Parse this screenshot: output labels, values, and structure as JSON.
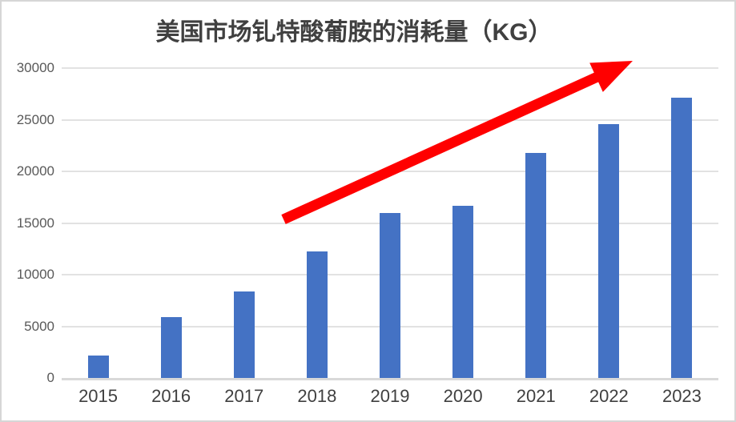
{
  "frame": {
    "background": "#ffffff",
    "border_color": "#d6d6d6"
  },
  "chart_data": {
    "type": "bar",
    "title": "美国市场钆特酸葡胺的消耗量（KG）",
    "categories": [
      "2015",
      "2016",
      "2017",
      "2018",
      "2019",
      "2020",
      "2021",
      "2022",
      "2023"
    ],
    "values": [
      2200,
      5900,
      8350,
      12250,
      16000,
      16700,
      21750,
      24600,
      27100
    ],
    "xlabel": "",
    "ylabel": "",
    "ylim": [
      0,
      30000
    ],
    "yticks": [
      0,
      5000,
      10000,
      15000,
      20000,
      25000,
      30000
    ],
    "grid": true,
    "legend": false,
    "bar_color": "#4472c4",
    "title_color": "#404040",
    "ytick_color": "#595959",
    "xtick_color": "#404040",
    "annotation": {
      "shape": "trend-arrow-up-right",
      "color": "#ff0000"
    }
  }
}
